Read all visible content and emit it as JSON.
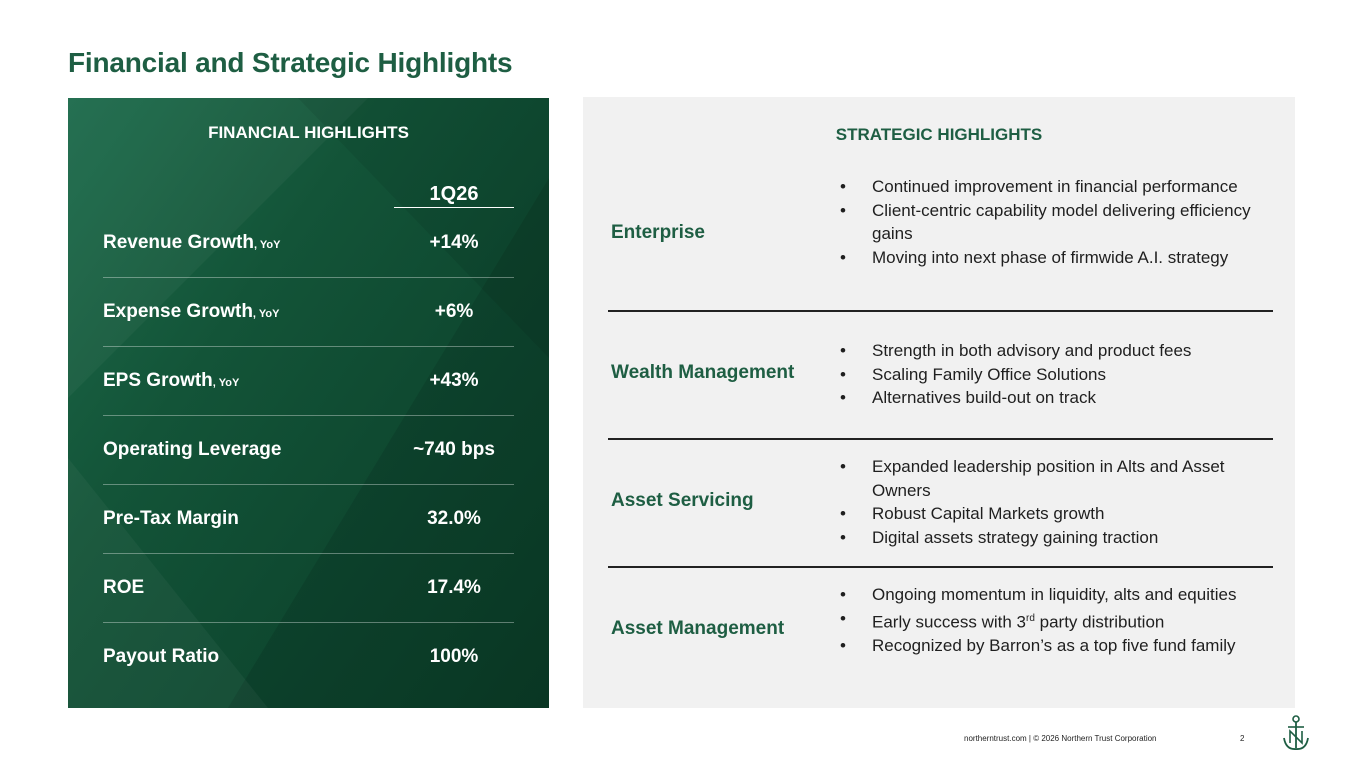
{
  "page": {
    "title": "Financial and Strategic Highlights"
  },
  "financial": {
    "heading": "FINANCIAL HIGHLIGHTS",
    "column_header": "1Q26",
    "rows": [
      {
        "label": "Revenue Growth",
        "suffix": ", YoY",
        "value": "+14%"
      },
      {
        "label": "Expense Growth",
        "suffix": ", YoY",
        "value": "+6%"
      },
      {
        "label": "EPS Growth",
        "suffix": ", YoY",
        "value": "+43%"
      },
      {
        "label": "Operating Leverage",
        "suffix": "",
        "value": "~740 bps"
      },
      {
        "label": "Pre-Tax Margin",
        "suffix": "",
        "value": "32.0%"
      },
      {
        "label": "ROE",
        "suffix": "",
        "value": "17.4%"
      },
      {
        "label": "Payout Ratio",
        "suffix": "",
        "value": "100%"
      }
    ]
  },
  "strategic": {
    "heading": "STRATEGIC HIGHLIGHTS",
    "bullet_glyph": "•",
    "sections": [
      {
        "name": "Enterprise",
        "bullets": [
          "Continued improvement in financial performance",
          "Client-centric capability model delivering efficiency gains",
          "Moving into next phase of firmwide A.I. strategy"
        ]
      },
      {
        "name": "Wealth Management",
        "bullets": [
          "Strength in both advisory and product fees",
          "Scaling Family Office Solutions",
          "Alternatives build-out on track"
        ]
      },
      {
        "name": "Asset Servicing",
        "bullets": [
          "Expanded leadership position in Alts and Asset Owners",
          "Robust Capital Markets growth",
          "Digital assets strategy gaining traction"
        ]
      },
      {
        "name": "Asset Management",
        "bullets": [
          "Ongoing momentum in liquidity, alts and equities",
          "Recognized by Barron’s as a top five fund family"
        ]
      }
    ],
    "distribution_bullet": {
      "before": "Early success with 3",
      "sup": "rd",
      "after": " party distribution"
    }
  },
  "footer": {
    "text": "northerntrust.com  |  © 2026 Northern Trust Corporation",
    "page_number": "2"
  },
  "colors": {
    "brand_green": "#1e5e43",
    "panel_green": "#135438",
    "strategic_bg": "#f1f1f1"
  },
  "icons": {
    "logo": "northern-trust-anchor-logo-icon"
  }
}
